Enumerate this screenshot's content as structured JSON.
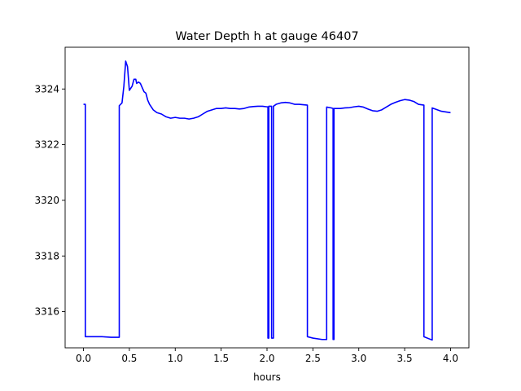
{
  "chart_data": {
    "type": "line",
    "title": "Water Depth h at gauge 46407",
    "xlabel": "hours",
    "ylabel": "",
    "xlim": [
      -0.2,
      4.2
    ],
    "ylim": [
      3314.7,
      3325.5
    ],
    "grid": false,
    "x_ticks": [
      0.0,
      0.5,
      1.0,
      1.5,
      2.0,
      2.5,
      3.0,
      3.5,
      4.0
    ],
    "x_tick_labels": [
      "0.0",
      "0.5",
      "1.0",
      "1.5",
      "2.0",
      "2.5",
      "3.0",
      "3.5",
      "4.0"
    ],
    "y_ticks": [
      3316,
      3318,
      3320,
      3322,
      3324
    ],
    "y_tick_labels": [
      "3316",
      "3318",
      "3320",
      "3322",
      "3324"
    ],
    "series": [
      {
        "name": "",
        "color": "#0000ff",
        "x": [
          0.0,
          0.02,
          0.02,
          0.2,
          0.3,
          0.39,
          0.39,
          0.42,
          0.44,
          0.46,
          0.48,
          0.5,
          0.53,
          0.55,
          0.57,
          0.58,
          0.6,
          0.62,
          0.64,
          0.66,
          0.68,
          0.7,
          0.72,
          0.76,
          0.8,
          0.85,
          0.9,
          0.95,
          1.0,
          1.05,
          1.1,
          1.15,
          1.2,
          1.25,
          1.3,
          1.35,
          1.4,
          1.45,
          1.5,
          1.55,
          1.6,
          1.65,
          1.7,
          1.75,
          1.8,
          1.85,
          1.9,
          1.95,
          2.0,
          2.01,
          2.01,
          2.02,
          2.02,
          2.04,
          2.05,
          2.05,
          2.07,
          2.07,
          2.1,
          2.15,
          2.2,
          2.25,
          2.3,
          2.35,
          2.44,
          2.44,
          2.5,
          2.6,
          2.65,
          2.65,
          2.7,
          2.72,
          2.72,
          2.73,
          2.73,
          2.8,
          2.85,
          2.9,
          2.95,
          3.0,
          3.05,
          3.1,
          3.15,
          3.2,
          3.25,
          3.3,
          3.35,
          3.4,
          3.45,
          3.5,
          3.55,
          3.6,
          3.65,
          3.71,
          3.71,
          3.8,
          3.8,
          3.9,
          4.0
        ],
        "y": [
          3323.45,
          3323.45,
          3315.1,
          3315.1,
          3315.08,
          3315.08,
          3323.4,
          3323.5,
          3324.1,
          3325.0,
          3324.8,
          3323.95,
          3324.1,
          3324.35,
          3324.35,
          3324.2,
          3324.25,
          3324.2,
          3324.05,
          3323.9,
          3323.85,
          3323.6,
          3323.45,
          3323.25,
          3323.15,
          3323.1,
          3323.0,
          3322.95,
          3322.98,
          3322.95,
          3322.95,
          3322.92,
          3322.95,
          3323.0,
          3323.1,
          3323.2,
          3323.25,
          3323.3,
          3323.3,
          3323.32,
          3323.3,
          3323.3,
          3323.28,
          3323.3,
          3323.35,
          3323.37,
          3323.38,
          3323.38,
          3323.36,
          3323.36,
          3315.05,
          3315.05,
          3323.38,
          3323.38,
          3323.38,
          3315.05,
          3315.05,
          3323.38,
          3323.45,
          3323.5,
          3323.52,
          3323.5,
          3323.45,
          3323.45,
          3323.42,
          3315.1,
          3315.05,
          3315.0,
          3315.0,
          3323.35,
          3323.32,
          3323.3,
          3315.0,
          3315.0,
          3323.3,
          3323.3,
          3323.32,
          3323.33,
          3323.36,
          3323.38,
          3323.35,
          3323.28,
          3323.22,
          3323.2,
          3323.25,
          3323.35,
          3323.45,
          3323.52,
          3323.58,
          3323.62,
          3323.6,
          3323.55,
          3323.45,
          3323.42,
          3315.1,
          3314.98,
          3323.32,
          3323.2,
          3323.15
        ]
      }
    ]
  }
}
